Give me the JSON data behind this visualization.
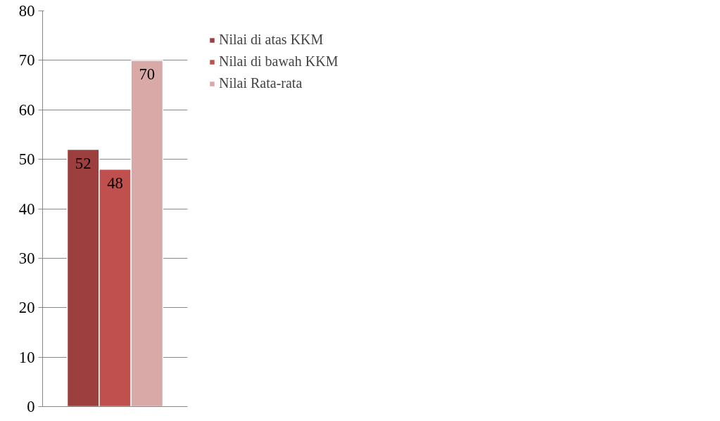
{
  "chart_data": {
    "type": "bar",
    "categories": [
      null
    ],
    "series": [
      {
        "name": "Nilai di atas KKM",
        "color": "#9c3f3e",
        "values": [
          52
        ]
      },
      {
        "name": "Nilai di bawah KKM",
        "color": "#c0504d",
        "values": [
          48
        ]
      },
      {
        "name": "Nilai Rata-rata",
        "color": "#d9a9a8",
        "values": [
          70
        ]
      }
    ],
    "ylim": [
      0,
      80
    ],
    "yticks": [
      0,
      10,
      20,
      30,
      40,
      50,
      60,
      70,
      80
    ],
    "grid": "y",
    "legend": "right",
    "data_labels": true,
    "tick_labels": "y"
  }
}
